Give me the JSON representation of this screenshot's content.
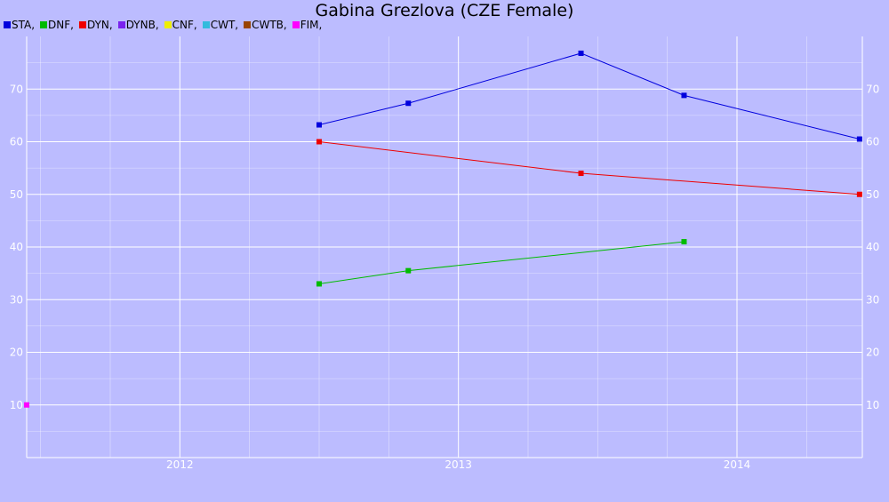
{
  "chart_data": {
    "type": "line",
    "title": "Gabina Grezlova (CZE Female)",
    "legend": {
      "placement": "top-left",
      "entries": [
        {
          "label": "STA,",
          "color": "#0000dd"
        },
        {
          "label": "DNF,",
          "color": "#00bb00"
        },
        {
          "label": "DYN,",
          "color": "#ee0000"
        },
        {
          "label": "DYNB,",
          "color": "#7a22ee"
        },
        {
          "label": "CNF,",
          "color": "#eeee00"
        },
        {
          "label": "CWT,",
          "color": "#33bbdd"
        },
        {
          "label": "CWTB,",
          "color": "#994400"
        },
        {
          "label": "FIM,",
          "color": "#ff00ff"
        }
      ]
    },
    "x_ticks": [
      "2012",
      "2013",
      "2014"
    ],
    "y_ticks": [
      "10",
      "20",
      "30",
      "40",
      "50",
      "60",
      "70"
    ],
    "xlim": [
      2011.45,
      2014.45
    ],
    "ylim": [
      0,
      80
    ],
    "grid": true,
    "series": [
      {
        "name": "STA",
        "color": "#0000dd",
        "x": [
          2012.5,
          2012.82,
          2013.44,
          2013.81,
          2014.44
        ],
        "y": [
          63.2,
          67.3,
          76.8,
          68.8,
          60.5
        ]
      },
      {
        "name": "DNF",
        "color": "#00bb00",
        "x": [
          2012.5,
          2012.82,
          2013.81
        ],
        "y": [
          33,
          35.5,
          41
        ]
      },
      {
        "name": "DYN",
        "color": "#ee0000",
        "x": [
          2012.5,
          2013.44,
          2014.44
        ],
        "y": [
          60,
          54,
          50
        ]
      },
      {
        "name": "FIM",
        "color": "#ff00ff",
        "x": [
          2011.45
        ],
        "y": [
          10
        ]
      }
    ]
  }
}
